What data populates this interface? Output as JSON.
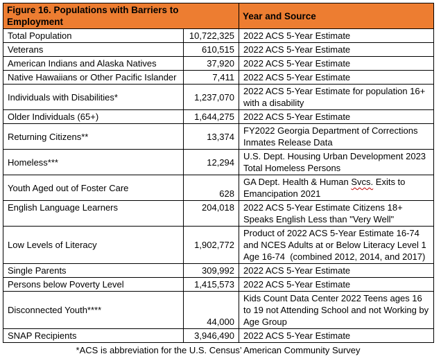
{
  "figure": {
    "title": "Figure 16. Populations with Barriers to Employment",
    "source_column_header": "Year and Source",
    "footnote": "*ACS is abbreviation for the U.S. Census’ American Community Survey",
    "colors": {
      "header_bg": "#ED7D31",
      "border": "#000000",
      "text": "#000000",
      "spellcheck_underline": "#C00000"
    },
    "rows": [
      {
        "label": "Total Population",
        "value": "10,722,325",
        "source": "2022 ACS 5-Year Estimate"
      },
      {
        "label": "Veterans",
        "value": "610,515",
        "source": "2022 ACS 5-Year Estimate"
      },
      {
        "label": "American Indians and Alaska Natives",
        "value": "37,920",
        "source": "2022 ACS 5-Year Estimate"
      },
      {
        "label": "Native Hawaiians or Other Pacific Islander",
        "value": "7,411",
        "source": "2022 ACS 5-Year Estimate"
      },
      {
        "label": "Individuals with Disabilities*",
        "value": "1,237,070",
        "source": "2022 ACS 5-Year Estimate for population 16+ with a disability"
      },
      {
        "label": "Older Individuals (65+)",
        "value": "1,644,275",
        "source": "2022 ACS 5-Year Estimate"
      },
      {
        "label": "Returning Citizens**",
        "value": "13,374",
        "source": "FY2022 Georgia Department of Corrections Inmates Release Data"
      },
      {
        "label": "Homeless***",
        "value": "12,294",
        "source": "U.S. Dept. Housing Urban Development 2023 Total Homeless Persons"
      },
      {
        "label": "Youth Aged out of Foster Care",
        "value": "628",
        "source": "GA Dept. Health & Human Svcs. Exits to Emancipation 2021",
        "misspelled": "Svcs."
      },
      {
        "label": "English Language Learners",
        "value": "204,018",
        "source": "2022 ACS 5-Year Estimate Citizens 18+ Speaks English Less than \"Very Well\""
      },
      {
        "label": "Low Levels of Literacy",
        "value": "1,902,772",
        "source": "Product of 2022 ACS 5-Year Estimate 16-74 and NCES Adults at or Below Literacy Level 1 Age 16-74  (combined 2012, 2014, and 2017)"
      },
      {
        "label": "Single Parents",
        "value": "309,992",
        "source": "2022 ACS 5-Year Estimate"
      },
      {
        "label": "Persons below Poverty Level",
        "value": "1,415,573",
        "source": "2022 ACS 5-Year Estimate"
      },
      {
        "label": "Disconnected Youth****",
        "value": "44,000",
        "source": "Kids Count Data Center 2022 Teens ages 16 to 19 not Attending School and not Working by Age Group"
      },
      {
        "label": "SNAP Recipients",
        "value": "3,946,490",
        "source": "2022 ACS 5-Year Estimate"
      }
    ]
  }
}
